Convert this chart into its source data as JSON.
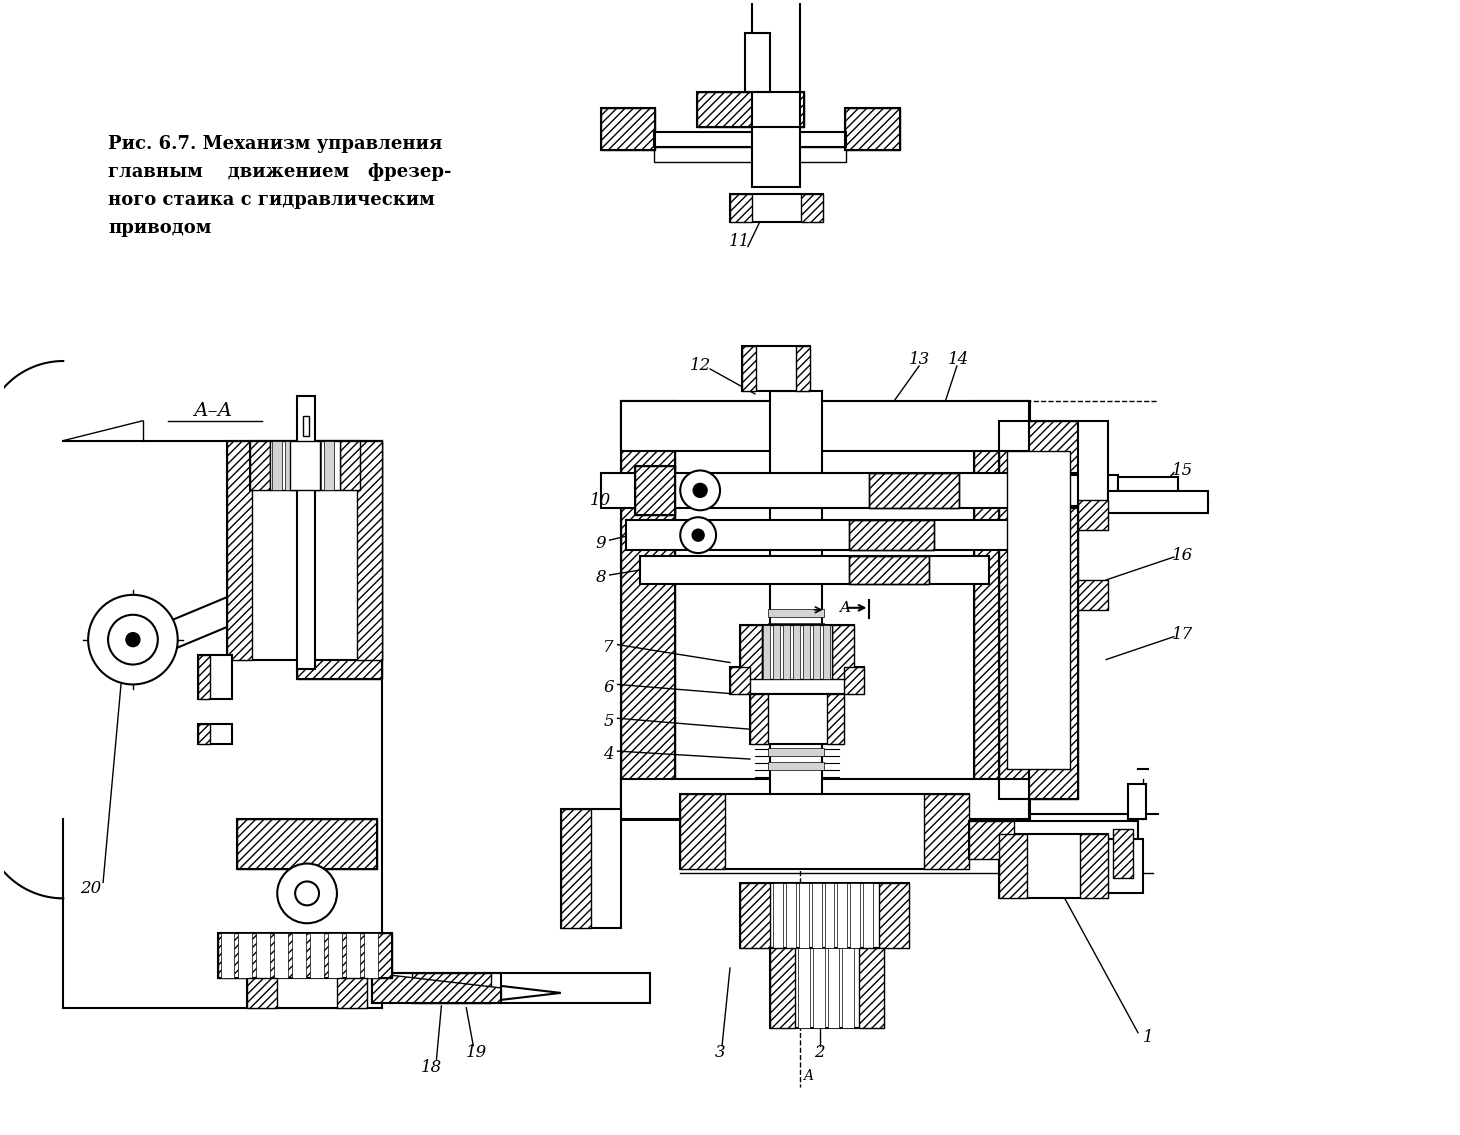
{
  "background_color": "#ffffff",
  "caption_lines": [
    "Рис. 6.7. Механизм управления",
    "главным    движением   фрезер-",
    "ного стаика с гидравлическим",
    "приводом"
  ],
  "caption_fontsize": 13.0,
  "fig_width": 14.6,
  "fig_height": 11.35,
  "line_color": "#000000"
}
